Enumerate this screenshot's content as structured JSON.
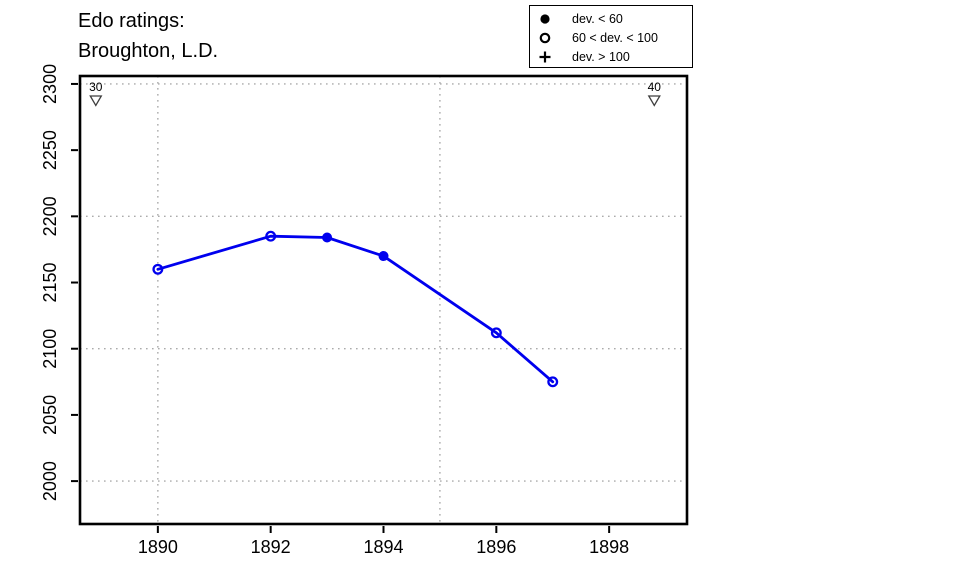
{
  "title": {
    "line1": "Edo ratings:",
    "line2": "Broughton, L.D."
  },
  "legend": {
    "items": [
      {
        "symbol": "filled-circle",
        "label": "dev. < 60"
      },
      {
        "symbol": "open-circle",
        "label": "60 < dev. < 100"
      },
      {
        "symbol": "plus",
        "label": "dev. > 100"
      }
    ]
  },
  "colors": {
    "line": "#0000ee",
    "grid": "#ababab",
    "axis": "#000000",
    "marker_outline": "#3f3f3f",
    "background": "#ffffff"
  },
  "chart_data": {
    "type": "line",
    "title": "Edo ratings: Broughton, L.D.",
    "xlabel": "",
    "ylabel": "",
    "xlim": [
      1888.62,
      1899.38
    ],
    "ylim": [
      1967.6,
      2306
    ],
    "x_ticks": [
      1890,
      1892,
      1894,
      1896,
      1898
    ],
    "y_ticks": [
      2000,
      2050,
      2100,
      2150,
      2200,
      2250,
      2300
    ],
    "x_gridlines": [
      1890,
      1895
    ],
    "y_gridlines": [
      2000,
      2100,
      2200,
      2300
    ],
    "grid": "dotted",
    "legend_position": "top-right",
    "series": [
      {
        "name": "Broughton, L.D.",
        "points": [
          {
            "x": 1890,
            "y": 2160,
            "marker": "open-circle"
          },
          {
            "x": 1892,
            "y": 2185,
            "marker": "open-circle"
          },
          {
            "x": 1893,
            "y": 2184,
            "marker": "filled-circle"
          },
          {
            "x": 1894,
            "y": 2170,
            "marker": "filled-circle"
          },
          {
            "x": 1896,
            "y": 2112,
            "marker": "open-circle"
          },
          {
            "x": 1897,
            "y": 2075,
            "marker": "open-circle"
          }
        ]
      }
    ],
    "age_markers": [
      {
        "label": "30",
        "x": 1888.9
      },
      {
        "label": "40",
        "x": 1898.8
      }
    ]
  }
}
